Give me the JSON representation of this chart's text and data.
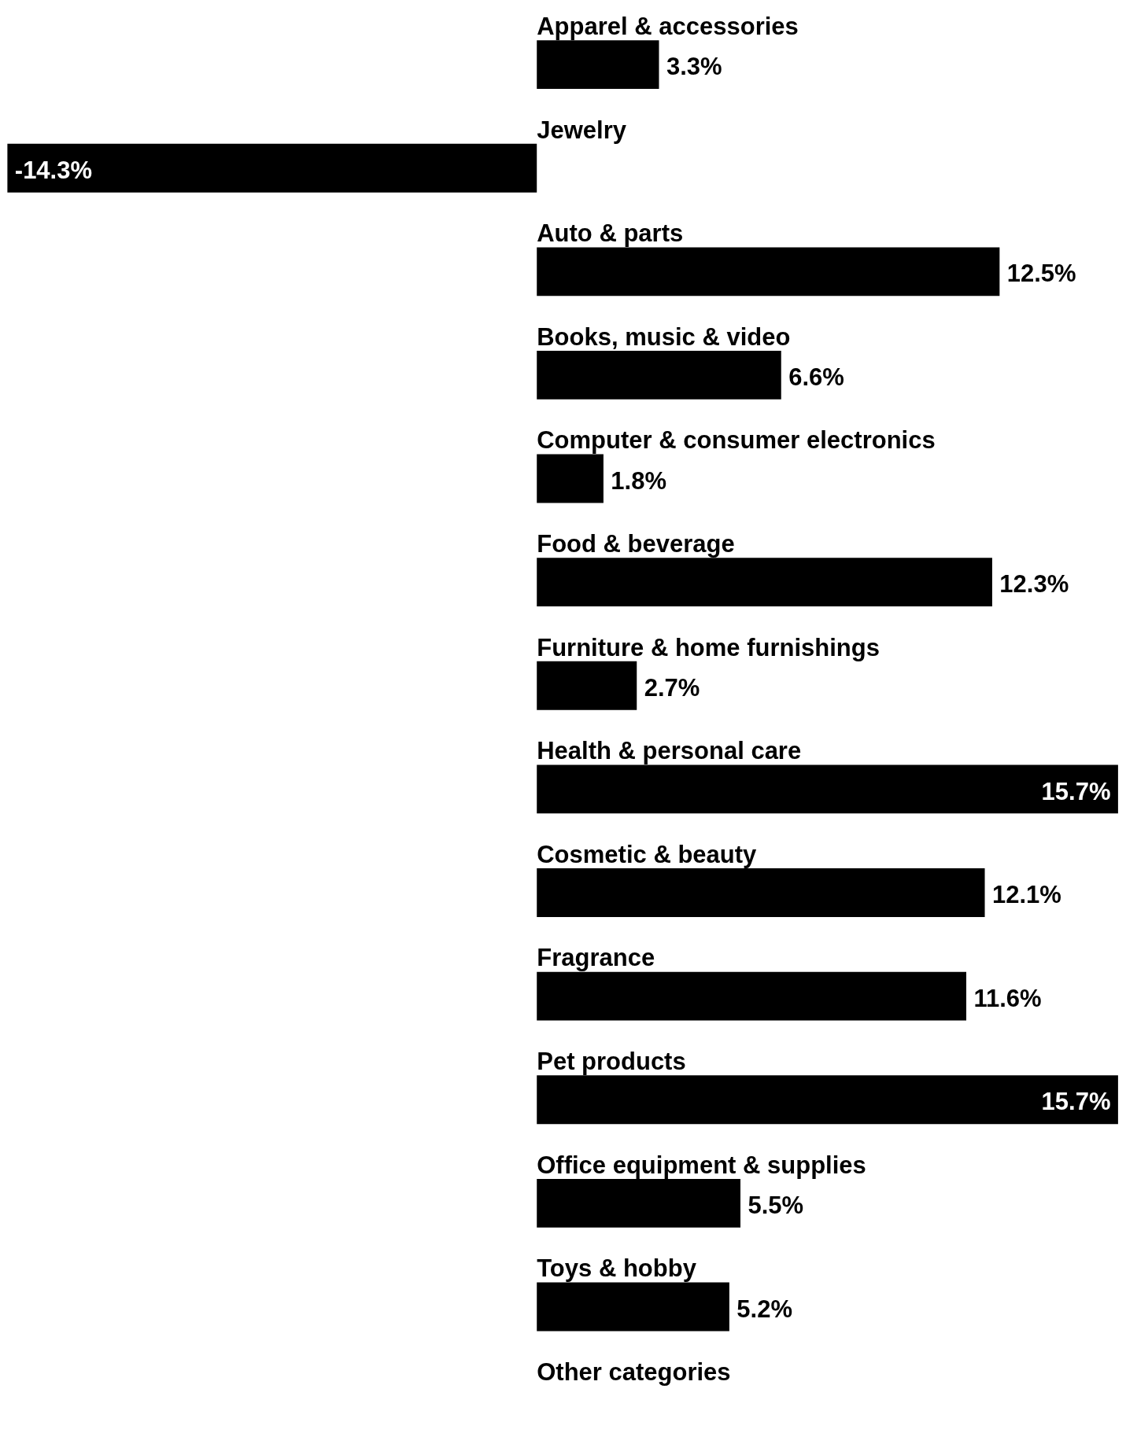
{
  "chart_data": {
    "type": "bar",
    "orientation": "horizontal",
    "color": "#000000",
    "categories": [
      "Apparel & accessories",
      "Jewelry",
      "Auto & parts",
      "Books, music & video",
      "Computer & consumer electronics",
      "Food & beverage",
      "Furniture & home furnishings",
      "Health & personal care",
      "Cosmetic & beauty",
      "Fragrance",
      "Pet products",
      "Office equipment & supplies",
      "Toys & hobby",
      "Other categories"
    ],
    "values": [
      3.3,
      -14.3,
      12.5,
      6.6,
      1.8,
      12.3,
      2.7,
      15.7,
      12.1,
      11.6,
      15.7,
      5.5,
      5.2,
      null
    ],
    "value_labels": [
      "3.3%",
      "-14.3%",
      "12.5%",
      "6.6%",
      "1.8%",
      "12.3%",
      "2.7%",
      "15.7%",
      "12.1%",
      "11.6%",
      "15.7%",
      "5.5%",
      "5.2%",
      null
    ]
  }
}
